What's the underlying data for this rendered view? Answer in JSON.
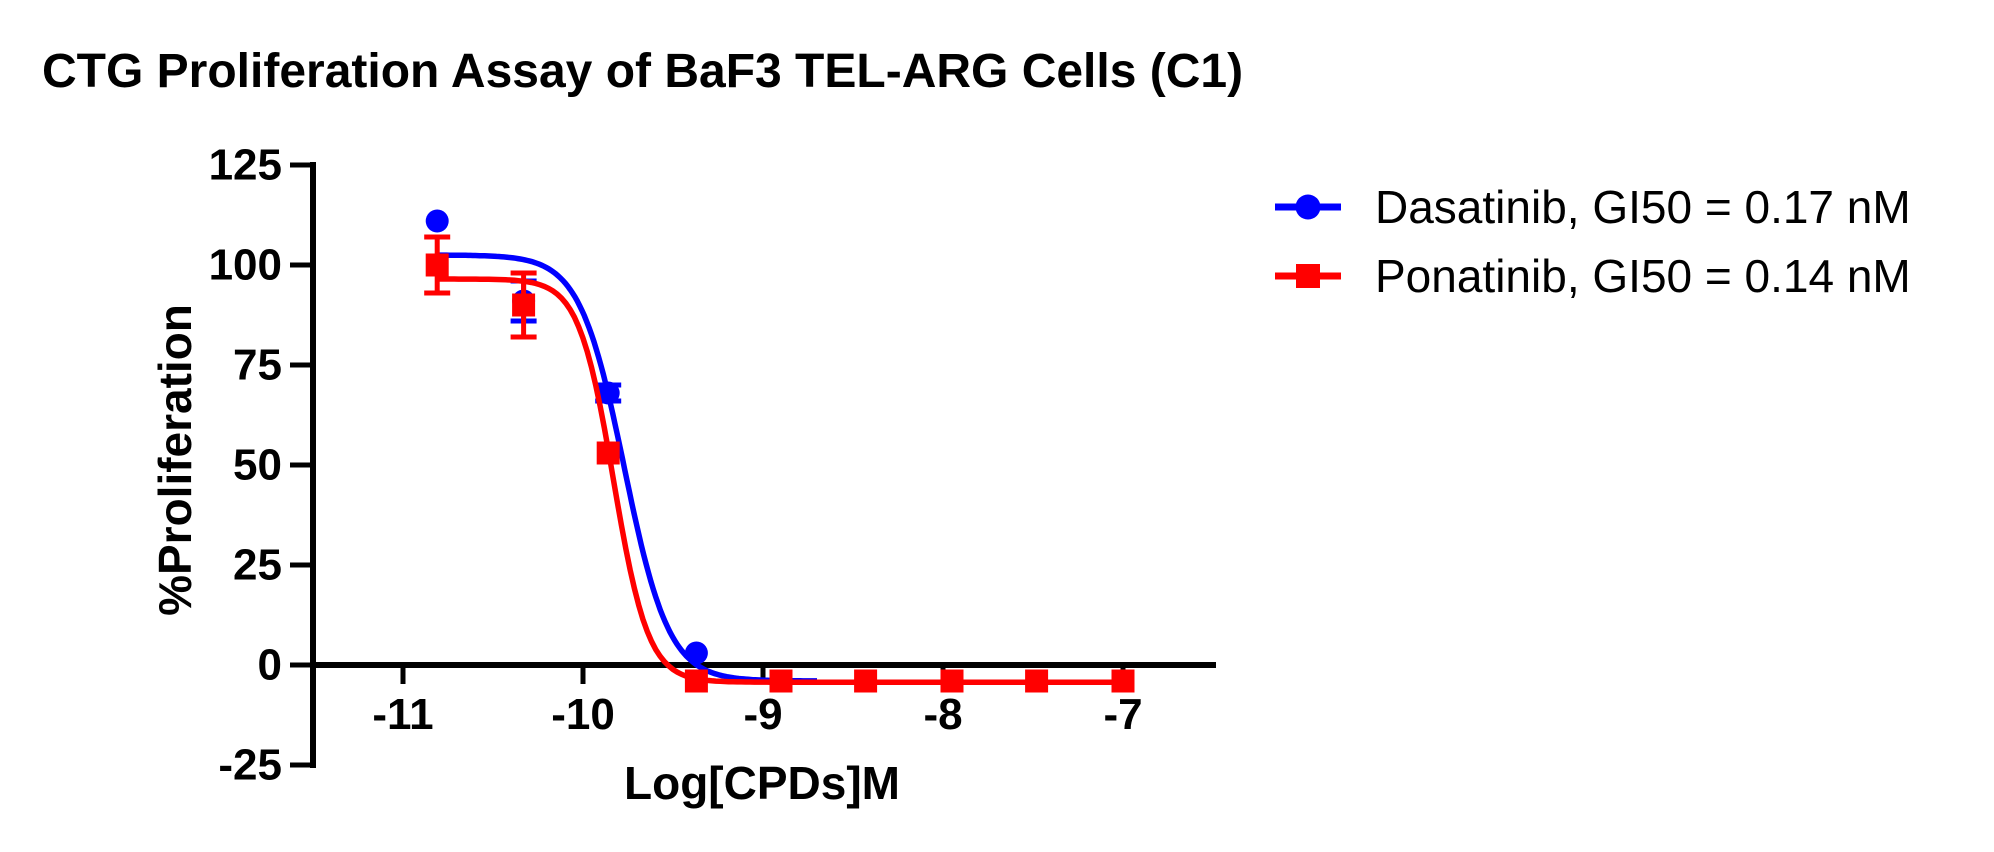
{
  "title": "CTG Proliferation Assay of BaF3 TEL-ARG Cells (C1)",
  "chart_data": {
    "type": "scatter",
    "title": "CTG Proliferation Assay of BaF3 TEL-ARG Cells (C1)",
    "xlabel": "Log[CPDs]M",
    "ylabel": "%Proliferation",
    "xlim": [
      -11.5,
      -6.5
    ],
    "ylim": [
      -25,
      125
    ],
    "x_ticks": [
      -11,
      -10,
      -9,
      -8,
      -7
    ],
    "y_ticks": [
      125,
      100,
      75,
      50,
      25,
      0,
      -25
    ],
    "grid": false,
    "legend_position": "right",
    "axis_color": "#000000",
    "series": [
      {
        "name": "Dasatinib, GI50 = 0.17 nM",
        "compound": "Dasatinib",
        "gi50": "0.17 nM",
        "color": "#0000ff",
        "marker": "circle",
        "points": [
          {
            "x": -10.81,
            "y": 111,
            "err": 0
          },
          {
            "x": -10.33,
            "y": 91,
            "err": 5
          },
          {
            "x": -9.86,
            "y": 68,
            "err": 2
          },
          {
            "x": -9.37,
            "y": 3,
            "err": 0
          }
        ],
        "fit_curve": {
          "top": 102.5,
          "bottom": -4.0,
          "log_gi50": -9.77,
          "hill": -3.5,
          "x_start": -10.81,
          "x_end": -8.7
        }
      },
      {
        "name": "Ponatinib, GI50 = 0.14 nM",
        "compound": "Ponatinib",
        "gi50": "0.14 nM",
        "color": "#ff0000",
        "marker": "square",
        "points": [
          {
            "x": -10.81,
            "y": 100,
            "err": 7
          },
          {
            "x": -10.33,
            "y": 90,
            "err": 8
          },
          {
            "x": -9.86,
            "y": 53,
            "err": 0
          },
          {
            "x": -9.37,
            "y": -4,
            "err": 0
          },
          {
            "x": -8.9,
            "y": -4,
            "err": 0
          },
          {
            "x": -8.43,
            "y": -4,
            "err": 0
          },
          {
            "x": -7.95,
            "y": -4,
            "err": 0
          },
          {
            "x": -7.48,
            "y": -4,
            "err": 0
          },
          {
            "x": -7.0,
            "y": -4,
            "err": 0
          }
        ],
        "fit_curve": {
          "top": 96.5,
          "bottom": -4.3,
          "log_gi50": -9.83,
          "hill": -4.5,
          "x_start": -10.81,
          "x_end": -7.0
        }
      }
    ]
  },
  "legend": {
    "items": [
      {
        "label": "Dasatinib, GI50 = 0.17 nM",
        "color": "#0000ff",
        "marker": "circle"
      },
      {
        "label": "Ponatinib, GI50 = 0.14 nM",
        "color": "#ff0000",
        "marker": "square"
      }
    ]
  }
}
